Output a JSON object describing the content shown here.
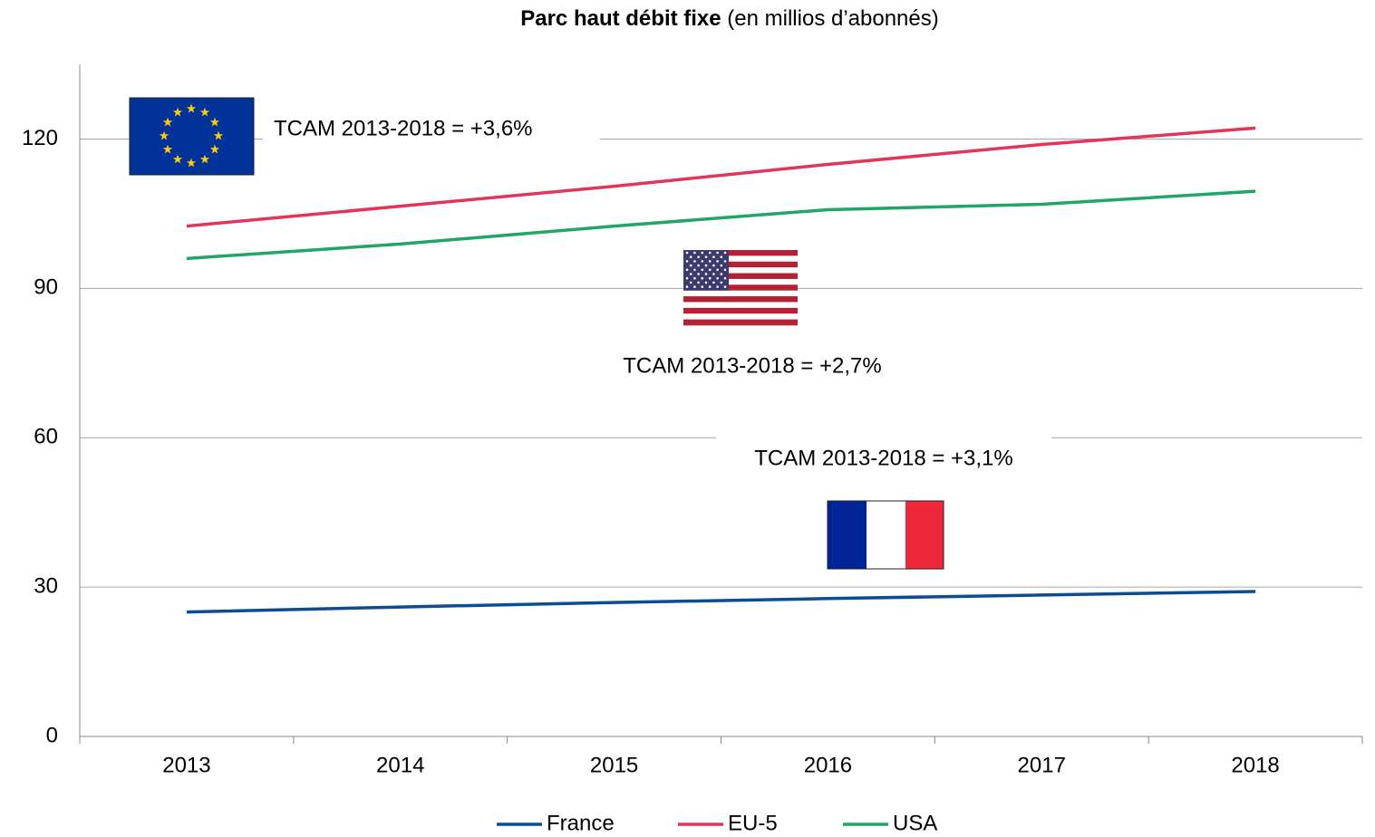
{
  "chart_data": {
    "type": "line",
    "title": "Parc haut débit fixe",
    "subtitle": "(en millios d’abonnés)",
    "categories": [
      "2013",
      "2014",
      "2015",
      "2016",
      "2017",
      "2018"
    ],
    "series": [
      {
        "name": "France",
        "color": "#0b4c93",
        "values": [
          25.0,
          26.0,
          26.9,
          27.7,
          28.4,
          29.1
        ]
      },
      {
        "name": "EU-5",
        "color": "#e0365a",
        "values": [
          102.5,
          106.5,
          110.5,
          114.9,
          118.9,
          122.2
        ]
      },
      {
        "name": "USA",
        "color": "#22a567",
        "values": [
          96.0,
          98.9,
          102.5,
          105.8,
          106.9,
          109.5
        ]
      }
    ],
    "annotations": [
      "TCAM 2013-2018 = +3,6%",
      "TCAM 2013-2018 = +2,7%",
      "TCAM 2013-2018 = +3,1%"
    ],
    "ylim": [
      0,
      135
    ],
    "yticks": [
      0,
      30,
      60,
      90,
      120
    ],
    "grid": true,
    "legend": "bottom"
  }
}
